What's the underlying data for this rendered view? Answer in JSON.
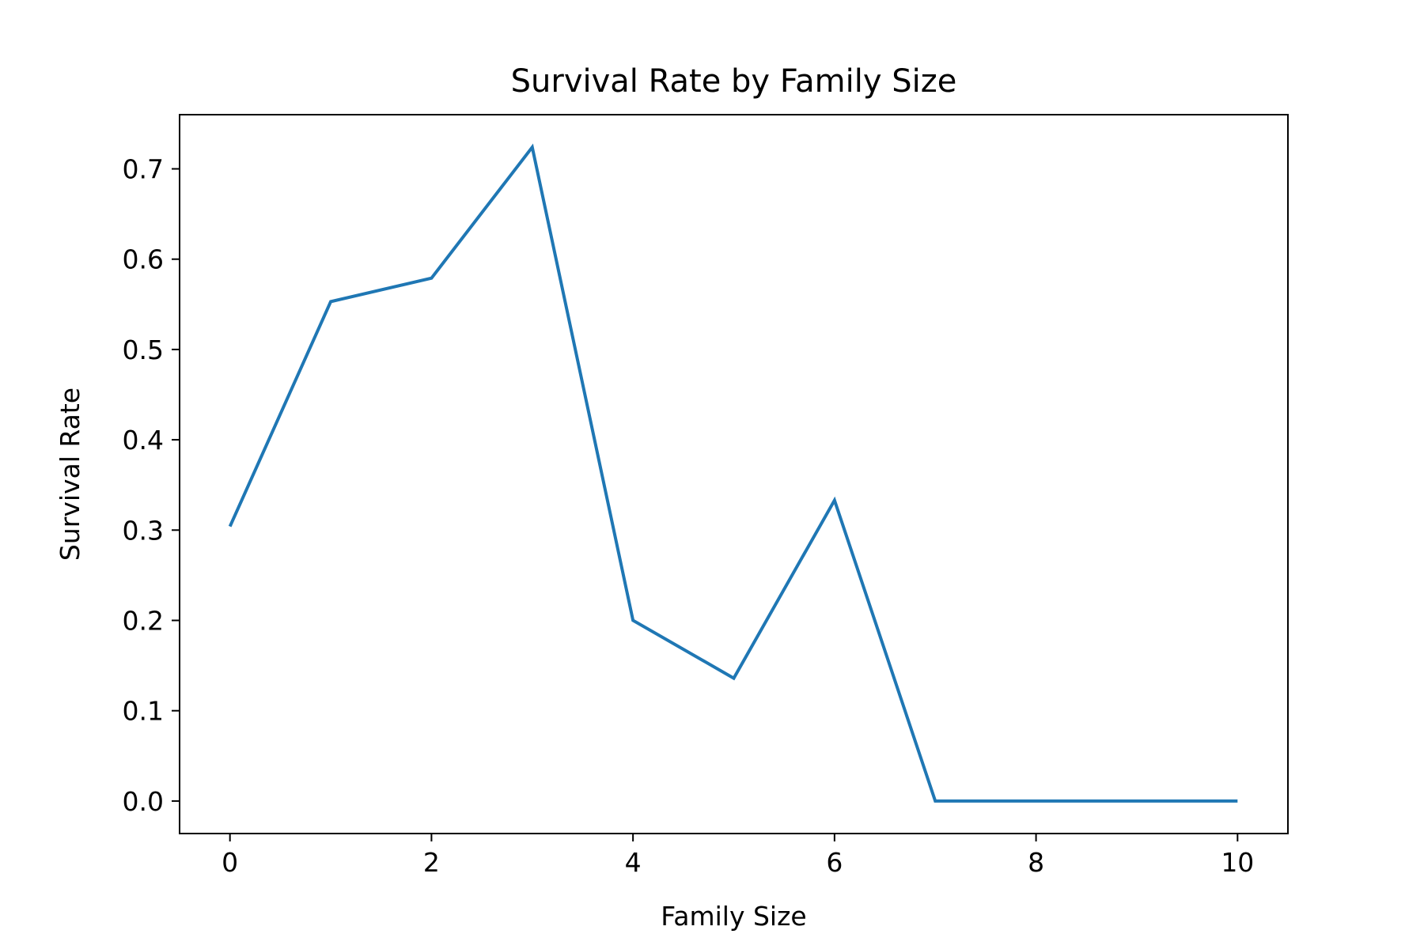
{
  "chart_data": {
    "type": "line",
    "title": "Survival Rate by Family Size",
    "xlabel": "Family Size",
    "ylabel": "Survival Rate",
    "xlim": [
      -0.5,
      10.5
    ],
    "ylim": [
      -0.036,
      0.76
    ],
    "xticks": [
      0,
      2,
      4,
      6,
      8,
      10
    ],
    "xtick_labels": [
      "0",
      "2",
      "4",
      "6",
      "8",
      "10"
    ],
    "yticks": [
      0.0,
      0.1,
      0.2,
      0.3,
      0.4,
      0.5,
      0.6,
      0.7
    ],
    "ytick_labels": [
      "0.0",
      "0.1",
      "0.2",
      "0.3",
      "0.4",
      "0.5",
      "0.6",
      "0.7"
    ],
    "grid": false,
    "legend": false,
    "series": [
      {
        "color": "#1f77b4",
        "x": [
          0,
          1,
          2,
          3,
          4,
          5,
          6,
          7,
          8,
          10
        ],
        "y": [
          0.304,
          0.553,
          0.579,
          0.724,
          0.2,
          0.136,
          0.333,
          0.0,
          0.0,
          0.0
        ]
      }
    ]
  }
}
